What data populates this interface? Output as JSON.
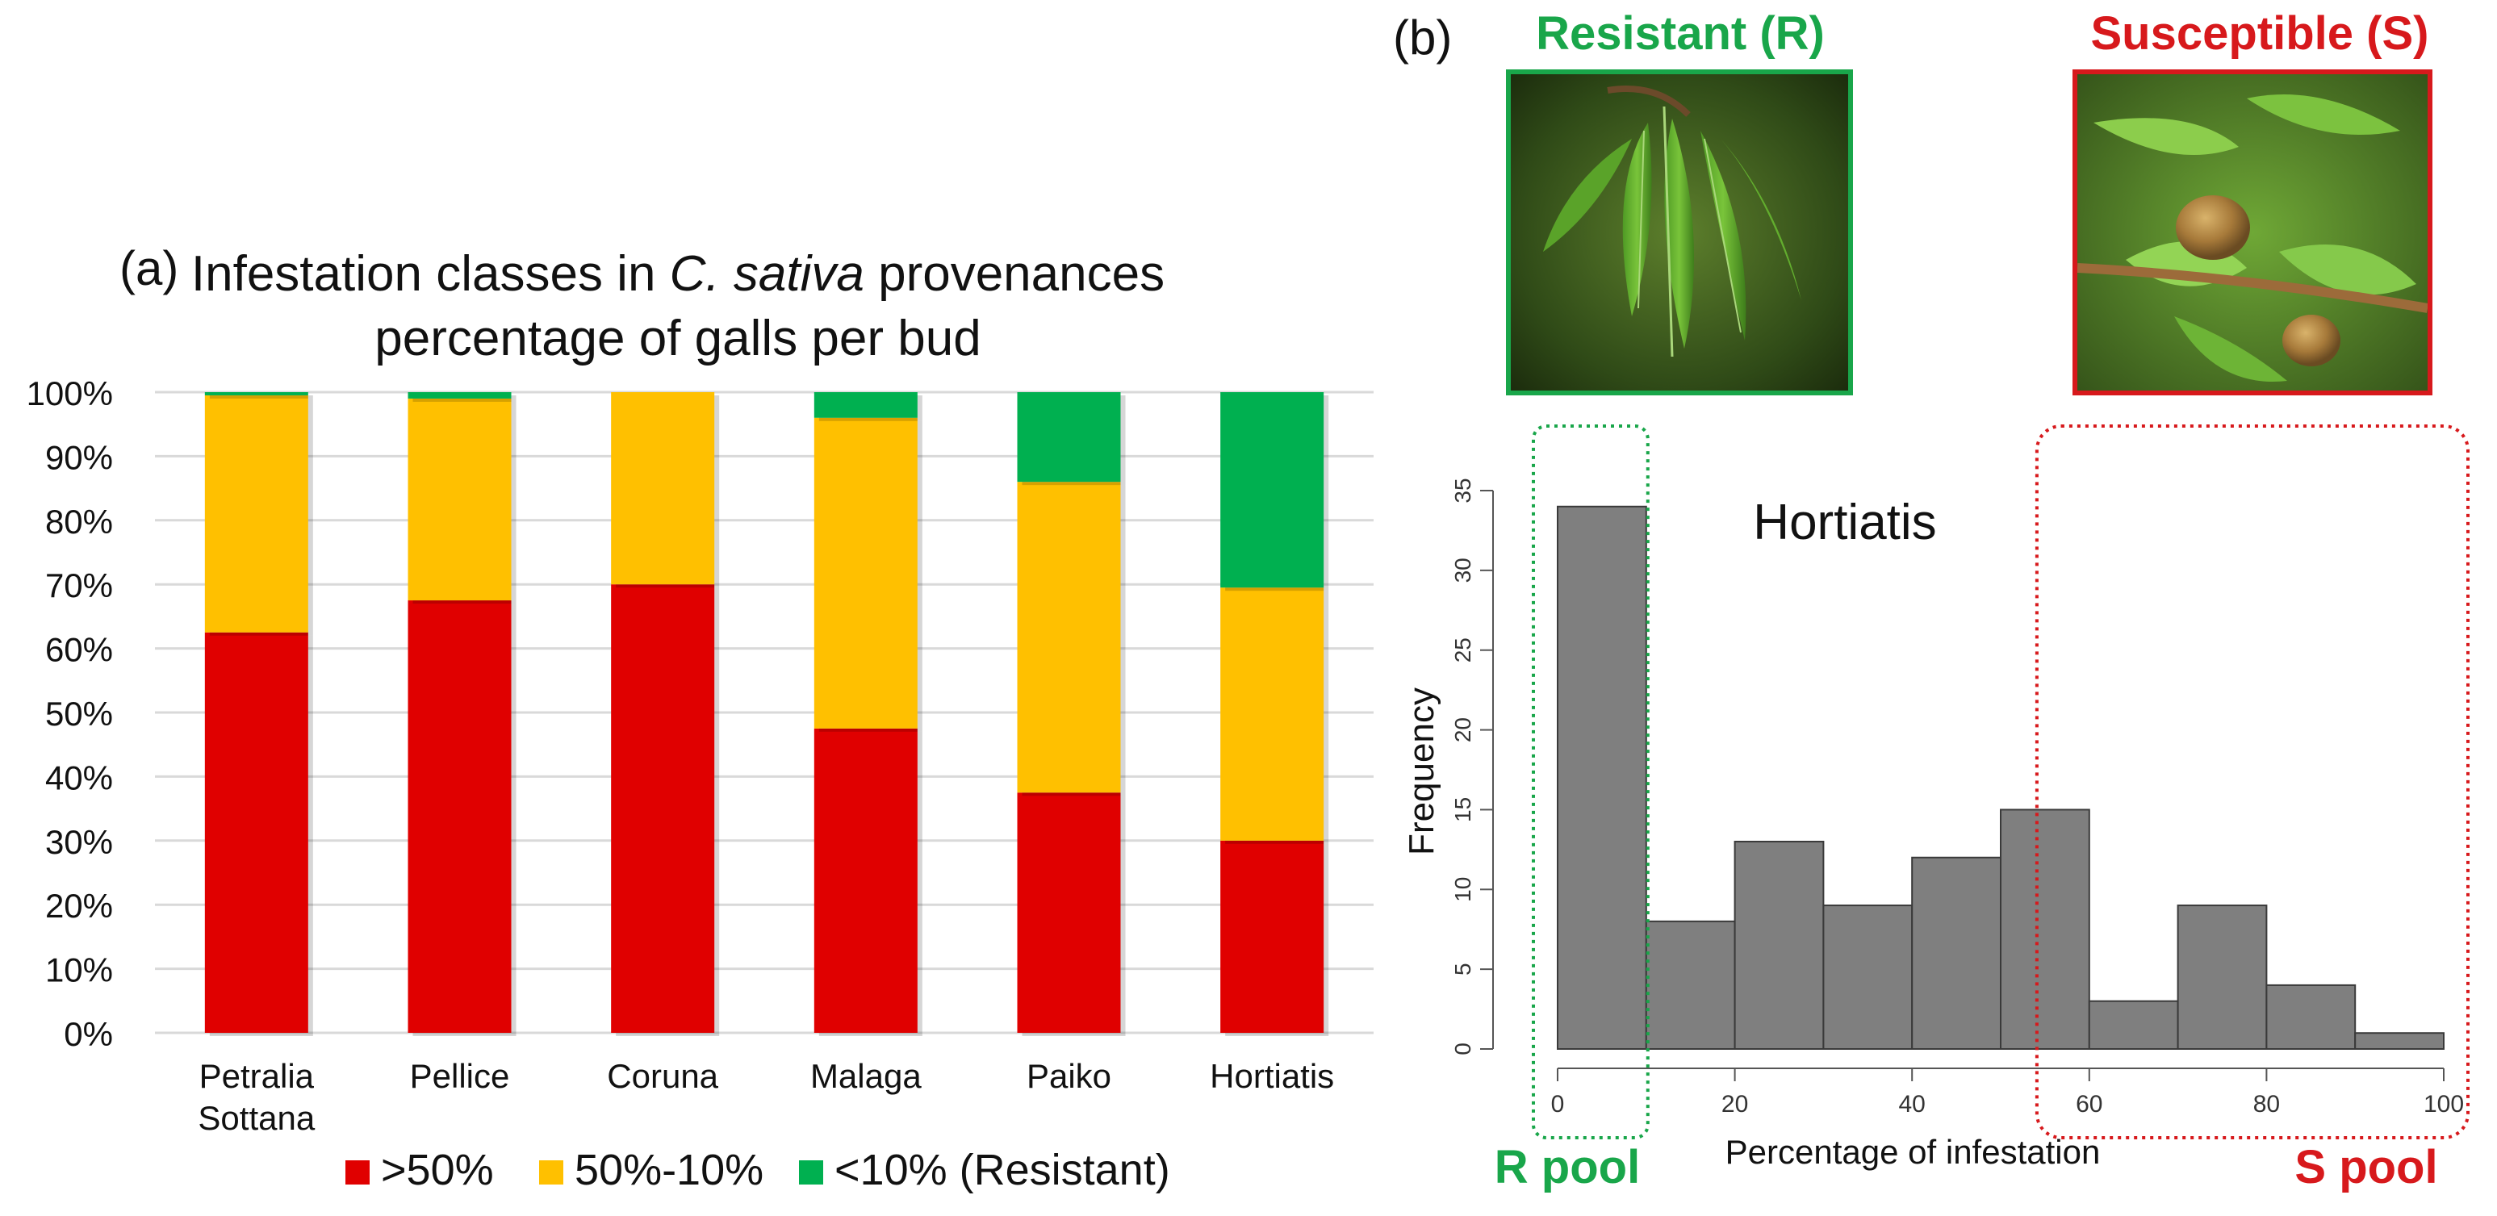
{
  "panels": {
    "a_label": "(a)",
    "b_label": "(b)"
  },
  "colors": {
    "high": "#e00000",
    "mid": "#ffc000",
    "low": "#00b050",
    "hist_bar": "#7f7f7f",
    "r_accent": "#19a64a",
    "s_accent": "#d7191c"
  },
  "chart_data": [
    {
      "id": "panel-a",
      "type": "bar",
      "stacked": true,
      "title_prefix": "Infestation classes in ",
      "title_italic": "C. sativa",
      "title_suffix": " provenances",
      "subtitle": "percentage of galls per bud",
      "categories": [
        [
          "Petralia",
          "Sottana"
        ],
        [
          "Pellice"
        ],
        [
          "Coruna"
        ],
        [
          "Malaga"
        ],
        [
          "Paiko"
        ],
        [
          "Hortiatis"
        ]
      ],
      "series": [
        {
          "name": ">50%",
          "color": "#e00000",
          "values": [
            62.5,
            67.5,
            70,
            47.5,
            37.5,
            30
          ]
        },
        {
          "name": "50%-10%",
          "color": "#ffc000",
          "values": [
            37,
            31.5,
            30,
            48.5,
            48.5,
            39.5
          ]
        },
        {
          "name": "<10% (Resistant)",
          "color": "#00b050",
          "values": [
            0.5,
            1,
            0,
            4,
            14,
            30.5
          ]
        }
      ],
      "ylim": [
        0,
        100
      ],
      "yticks": [
        "0%",
        "10%",
        "20%",
        "30%",
        "40%",
        "50%",
        "60%",
        "70%",
        "80%",
        "90%",
        "100%"
      ],
      "grid": true,
      "legend_position": "bottom"
    },
    {
      "id": "panel-b",
      "type": "bar",
      "subtype": "histogram",
      "annotation": "Hortiatis",
      "xlabel": "Percentage of infestation",
      "ylabel": "Frequency",
      "bins": [
        [
          0,
          10
        ],
        [
          10,
          20
        ],
        [
          20,
          30
        ],
        [
          30,
          40
        ],
        [
          40,
          50
        ],
        [
          50,
          60
        ],
        [
          60,
          70
        ],
        [
          70,
          80
        ],
        [
          80,
          90
        ],
        [
          90,
          100
        ]
      ],
      "values": [
        34,
        8,
        13,
        9,
        12,
        15,
        3,
        9,
        4,
        1
      ],
      "xlim": [
        0,
        100
      ],
      "ylim": [
        0,
        35
      ],
      "xticks": [
        0,
        20,
        40,
        60,
        80,
        100
      ],
      "yticks": [
        0,
        5,
        10,
        15,
        20,
        25,
        30,
        35
      ],
      "r_pool_range": [
        0,
        10
      ],
      "s_pool_range": [
        55,
        100
      ]
    }
  ],
  "panel_b": {
    "resistant_title": "Resistant (R)",
    "susceptible_title": "Susceptible (S)",
    "r_pool": "R pool",
    "s_pool": "S pool"
  }
}
